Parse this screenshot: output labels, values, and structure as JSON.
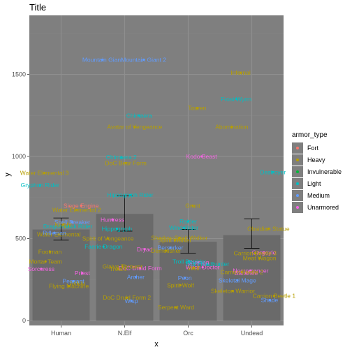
{
  "chart_data": {
    "type": "bar",
    "title": "Title",
    "xlabel": "x",
    "ylabel": "y",
    "categories": [
      "Human",
      "N.Elf",
      "Orc",
      "Undead"
    ],
    "bars": [
      {
        "category": "Human",
        "value": 555,
        "err_low": 490,
        "err_high": 625
      },
      {
        "category": "N.Elf",
        "value": 650,
        "err_low": 545,
        "err_high": 760
      },
      {
        "category": "Orc",
        "value": 480,
        "err_low": 410,
        "err_high": 555
      },
      {
        "category": "Undead",
        "value": 520,
        "err_low": 440,
        "err_high": 620
      }
    ],
    "ylim": [
      -30,
      1860
    ],
    "yticks": [
      0,
      500,
      1000,
      1500
    ],
    "xticks": [
      "Human",
      "N.Elf",
      "Orc",
      "Undead"
    ],
    "grid": true,
    "legend": {
      "title": "armor_type",
      "placement": "right",
      "entries": [
        {
          "name": "Fort",
          "color": "#F8766D"
        },
        {
          "name": "Heavy",
          "color": "#B79F00"
        },
        {
          "name": "Invulnerable",
          "color": "#00BA38"
        },
        {
          "name": "Light",
          "color": "#00BFC4"
        },
        {
          "name": "Medium",
          "color": "#619CFF"
        },
        {
          "name": "Unarmored",
          "color": "#F564E3"
        }
      ]
    },
    "points": [
      {
        "label": "Mountain Giant",
        "x": "N.Elf",
        "y": 1590,
        "armor": "Medium"
      },
      {
        "label": "Mountain Giant 2",
        "x": "N.Elf",
        "y": 1590,
        "armor": "Medium"
      },
      {
        "label": "Chimaera",
        "x": "N.Elf",
        "y": 1250,
        "armor": "Light"
      },
      {
        "label": "Avatar of Vengeance",
        "x": "N.Elf",
        "y": 1180,
        "armor": "Heavy"
      },
      {
        "label": "Hippogryph Rider",
        "x": "N.Elf",
        "y": 765,
        "armor": "Light"
      },
      {
        "label": "DoC Bear Form",
        "x": "N.Elf",
        "y": 960,
        "armor": "Heavy"
      },
      {
        "label": "Chimaera 2",
        "x": "N.Elf",
        "y": 995,
        "armor": "Light"
      },
      {
        "label": "Hippogryph",
        "x": "N.Elf",
        "y": 560,
        "armor": "Light"
      },
      {
        "label": "Huntress",
        "x": "N.Elf",
        "y": 615,
        "armor": "Unarmored"
      },
      {
        "label": "Spirit of Vengeance",
        "x": "N.Elf",
        "y": 500,
        "armor": "Heavy"
      },
      {
        "label": "Faerie Dragon",
        "x": "N.Elf",
        "y": 450,
        "armor": "Light"
      },
      {
        "label": "Dryad",
        "x": "N.Elf",
        "y": 435,
        "armor": "Unarmored"
      },
      {
        "label": "DoC Druid Form",
        "x": "N.Elf",
        "y": 320,
        "armor": "Unarmored"
      },
      {
        "label": "Archer",
        "x": "N.Elf",
        "y": 265,
        "armor": "Medium"
      },
      {
        "label": "Wisp",
        "x": "N.Elf",
        "y": 120,
        "armor": "Medium"
      },
      {
        "label": "DoC Druid Form 2",
        "x": "N.Elf",
        "y": 140,
        "armor": "Heavy"
      },
      {
        "label": "Glaive Thrower",
        "x": "N.Elf",
        "y": 330,
        "armor": "Heavy"
      },
      {
        "label": "Treant",
        "x": "N.Elf",
        "y": 315,
        "armor": "Heavy"
      },
      {
        "label": "Infernal",
        "x": "Undead",
        "y": 1510,
        "armor": "Heavy"
      },
      {
        "label": "Frost Wyrm",
        "x": "Undead",
        "y": 1350,
        "armor": "Light"
      },
      {
        "label": "Abomination",
        "x": "Undead",
        "y": 1180,
        "armor": "Heavy"
      },
      {
        "label": "Destroyer",
        "x": "Undead",
        "y": 905,
        "armor": "Light"
      },
      {
        "label": "Obsidian Statue",
        "x": "Undead",
        "y": 560,
        "armor": "Heavy"
      },
      {
        "label": "Gargoyle",
        "x": "Undead",
        "y": 415,
        "armor": "Unarmored"
      },
      {
        "label": "Meat Wagon",
        "x": "Undead",
        "y": 380,
        "armor": "Heavy"
      },
      {
        "label": "Carrion Beetle 3",
        "x": "Undead",
        "y": 410,
        "armor": "Heavy"
      },
      {
        "label": "Necromancer",
        "x": "Undead",
        "y": 305,
        "armor": "Unarmored"
      },
      {
        "label": "Banshee",
        "x": "Undead",
        "y": 290,
        "armor": "Unarmored"
      },
      {
        "label": "Carrion Beetle 2",
        "x": "Undead",
        "y": 295,
        "armor": "Heavy"
      },
      {
        "label": "Skeletal Mage",
        "x": "Undead",
        "y": 245,
        "armor": "Medium"
      },
      {
        "label": "Skeleton Warrior",
        "x": "Undead",
        "y": 180,
        "armor": "Heavy"
      },
      {
        "label": "Carrion Beetle 1",
        "x": "Undead",
        "y": 150,
        "armor": "Heavy"
      },
      {
        "label": "Shade",
        "x": "Undead",
        "y": 125,
        "armor": "Medium"
      },
      {
        "label": "Kodo Beast",
        "x": "Orc",
        "y": 1000,
        "armor": "Unarmored"
      },
      {
        "label": "Tauren",
        "x": "Orc",
        "y": 1295,
        "armor": "Heavy"
      },
      {
        "label": "Grunt",
        "x": "Orc",
        "y": 700,
        "armor": "Heavy"
      },
      {
        "label": "Raider",
        "x": "Orc",
        "y": 605,
        "armor": "Light"
      },
      {
        "label": "Wind Rider",
        "x": "Orc",
        "y": 565,
        "armor": "Light"
      },
      {
        "label": "Shadow Spirit Walker",
        "x": "Orc",
        "y": 505,
        "armor": "Heavy"
      },
      {
        "label": "Spirit Walker",
        "x": "Orc",
        "y": 490,
        "armor": "Heavy"
      },
      {
        "label": "Berserker",
        "x": "Orc",
        "y": 445,
        "armor": "Medium"
      },
      {
        "label": "Demolisher",
        "x": "Orc",
        "y": 425,
        "armor": "Heavy"
      },
      {
        "label": "Troll Headhunter",
        "x": "Orc",
        "y": 345,
        "armor": "Light"
      },
      {
        "label": "Witch Doctor",
        "x": "Orc",
        "y": 325,
        "armor": "Unarmored"
      },
      {
        "label": "Shaman",
        "x": "Orc",
        "y": 355,
        "armor": "Unarmored"
      },
      {
        "label": "Wolf",
        "x": "Orc",
        "y": 320,
        "armor": "Heavy"
      },
      {
        "label": "Troll Batrider",
        "x": "Orc",
        "y": 360,
        "armor": "Light"
      },
      {
        "label": "Peon",
        "x": "Orc",
        "y": 260,
        "armor": "Medium"
      },
      {
        "label": "Spirit Wolf",
        "x": "Orc",
        "y": 215,
        "armor": "Heavy"
      },
      {
        "label": "Serpent Ward",
        "x": "Orc",
        "y": 80,
        "armor": "Heavy"
      },
      {
        "label": "Water Elemental 3",
        "x": "Human",
        "y": 900,
        "armor": "Heavy"
      },
      {
        "label": "Gryphon Rider",
        "x": "Human",
        "y": 825,
        "armor": "Light"
      },
      {
        "label": "Siege Engine",
        "x": "Human",
        "y": 700,
        "armor": "Fort"
      },
      {
        "label": "Water Elemental 2",
        "x": "Human",
        "y": 675,
        "armor": "Heavy"
      },
      {
        "label": "Spell Breaker",
        "x": "Human",
        "y": 600,
        "armor": "Medium"
      },
      {
        "label": "Dragonhawk Rider",
        "x": "Human",
        "y": 575,
        "armor": "Light"
      },
      {
        "label": "Knight",
        "x": "Human",
        "y": 585,
        "armor": "Heavy"
      },
      {
        "label": "Water Elemental",
        "x": "Human",
        "y": 525,
        "armor": "Heavy"
      },
      {
        "label": "Rifleman",
        "x": "Human",
        "y": 535,
        "armor": "Medium"
      },
      {
        "label": "Footman",
        "x": "Human",
        "y": 420,
        "armor": "Heavy"
      },
      {
        "label": "Mortar Team",
        "x": "Human",
        "y": 360,
        "armor": "Heavy"
      },
      {
        "label": "Sorceress",
        "x": "Human",
        "y": 315,
        "armor": "Unarmored"
      },
      {
        "label": "Priest",
        "x": "Human",
        "y": 290,
        "armor": "Unarmored"
      },
      {
        "label": "Militia",
        "x": "Human",
        "y": 230,
        "armor": "Heavy"
      },
      {
        "label": "Peasant",
        "x": "Human",
        "y": 240,
        "armor": "Medium"
      },
      {
        "label": "Flying Machine",
        "x": "Human",
        "y": 210,
        "armor": "Heavy"
      }
    ]
  }
}
